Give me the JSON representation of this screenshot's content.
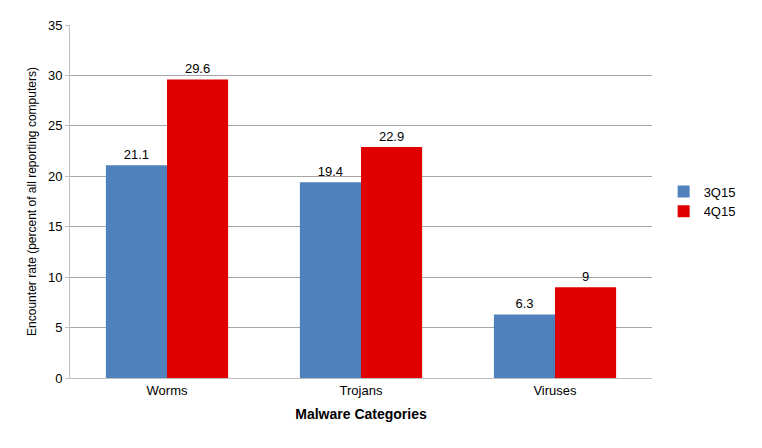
{
  "chart_data": {
    "type": "bar",
    "x_label": "Malware Categories",
    "y_label": "Encounter rate (percent of all reporting computers)",
    "categories": [
      "Worms",
      "Trojans",
      "Viruses"
    ],
    "series": [
      {
        "name": "3Q15",
        "color": "#4f81bd",
        "values": [
          21.1,
          19.4,
          6.3
        ]
      },
      {
        "name": "4Q15",
        "color": "#e00000",
        "values": [
          29.6,
          22.9,
          9
        ]
      }
    ],
    "ylim": [
      0,
      35
    ],
    "yticks": [
      0,
      5,
      10,
      15,
      20,
      25,
      30,
      35
    ],
    "grid": true,
    "legend": "right",
    "data_labels": true
  }
}
